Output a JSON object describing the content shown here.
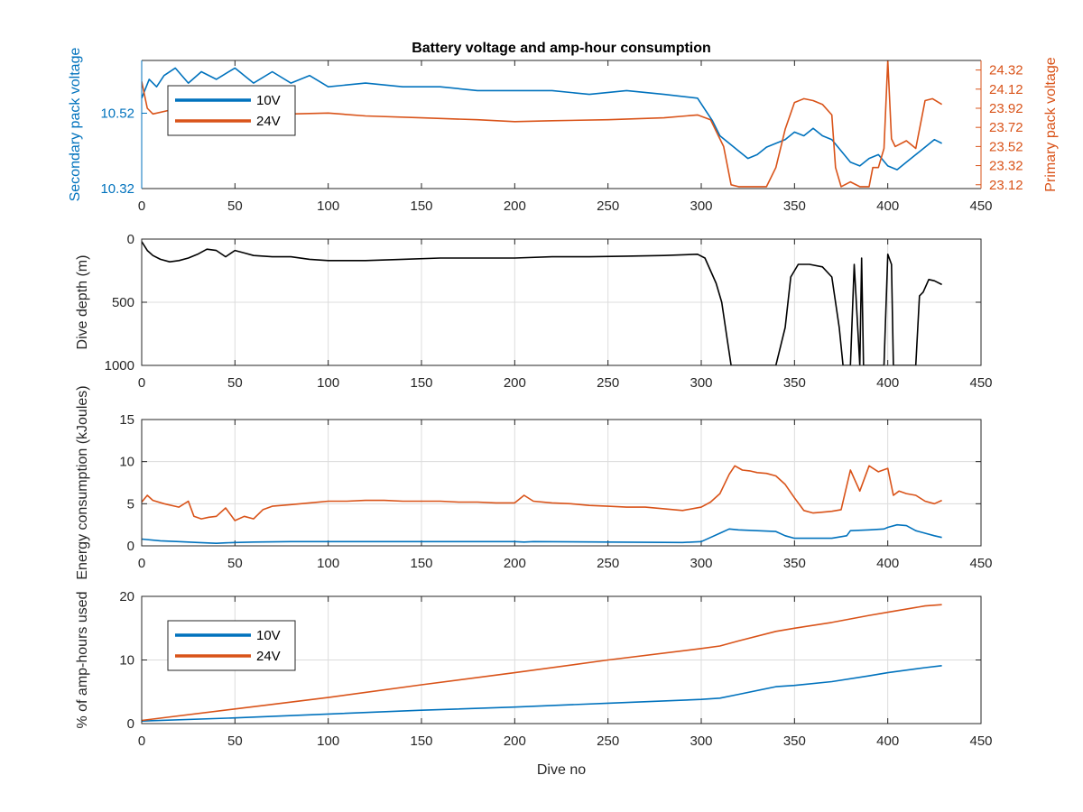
{
  "colors": {
    "blue": "#0072bd",
    "orange": "#d95319",
    "black": "#000000"
  },
  "chart_data": [
    {
      "type": "line",
      "title": "Battery voltage and amp-hour consumption",
      "xlim": [
        0,
        450
      ],
      "xticks": [
        0,
        50,
        100,
        150,
        200,
        250,
        300,
        350,
        400,
        450
      ],
      "ylabel": "Secondary pack voltage",
      "ylim": [
        10.32,
        10.66
      ],
      "yticks": [
        "10.32",
        "10.52"
      ],
      "ylabel_right": "Primary pack voltage",
      "ylim_right": [
        23.08,
        24.42
      ],
      "yticks_right": [
        "23.12",
        "23.32",
        "23.52",
        "23.72",
        "23.92",
        "24.12",
        "24.32"
      ],
      "grid": false,
      "legend": "top-left",
      "series": [
        {
          "name": "10V",
          "color": "#0072bd",
          "axis": "left",
          "x": [
            0,
            4,
            8,
            12,
            18,
            25,
            32,
            40,
            50,
            60,
            70,
            80,
            90,
            100,
            120,
            140,
            160,
            180,
            200,
            220,
            240,
            260,
            280,
            298,
            302,
            306,
            310,
            315,
            320,
            325,
            330,
            335,
            340,
            345,
            350,
            355,
            360,
            365,
            370,
            375,
            380,
            385,
            390,
            395,
            400,
            405,
            410,
            415,
            420,
            425,
            429
          ],
          "y": [
            10.56,
            10.61,
            10.59,
            10.62,
            10.64,
            10.6,
            10.63,
            10.61,
            10.64,
            10.6,
            10.63,
            10.6,
            10.62,
            10.59,
            10.6,
            10.59,
            10.59,
            10.58,
            10.58,
            10.58,
            10.57,
            10.58,
            10.57,
            10.56,
            10.53,
            10.5,
            10.46,
            10.44,
            10.42,
            10.4,
            10.41,
            10.43,
            10.44,
            10.45,
            10.47,
            10.46,
            10.48,
            10.46,
            10.45,
            10.42,
            10.39,
            10.38,
            10.4,
            10.41,
            10.38,
            10.37,
            10.39,
            10.41,
            10.43,
            10.45,
            10.44
          ]
        },
        {
          "name": "24V",
          "color": "#d95319",
          "axis": "right",
          "x": [
            0,
            3,
            6,
            15,
            30,
            40,
            60,
            80,
            100,
            120,
            150,
            180,
            200,
            220,
            250,
            280,
            298,
            305,
            312,
            316,
            320,
            335,
            340,
            345,
            350,
            355,
            360,
            365,
            370,
            372,
            375,
            380,
            385,
            390,
            392,
            395,
            398,
            400,
            402,
            404,
            410,
            415,
            418,
            420,
            424,
            429
          ],
          "y": [
            24.2,
            23.92,
            23.86,
            23.9,
            23.94,
            23.9,
            23.88,
            23.86,
            23.87,
            23.84,
            23.82,
            23.8,
            23.78,
            23.79,
            23.8,
            23.82,
            23.85,
            23.8,
            23.52,
            23.12,
            23.1,
            23.1,
            23.3,
            23.7,
            23.98,
            24.02,
            24.0,
            23.96,
            23.85,
            23.3,
            23.1,
            23.15,
            23.1,
            23.1,
            23.3,
            23.3,
            23.5,
            24.42,
            23.6,
            23.52,
            23.58,
            23.5,
            23.8,
            24.0,
            24.02,
            23.96
          ]
        }
      ]
    },
    {
      "type": "line",
      "xlim": [
        0,
        450
      ],
      "xticks": [
        0,
        50,
        100,
        150,
        200,
        250,
        300,
        350,
        400,
        450
      ],
      "ylabel": "Dive depth (m)",
      "ylim": [
        0,
        1000
      ],
      "y_reversed": true,
      "yticks": [
        "0",
        "500",
        "1000"
      ],
      "grid": true,
      "series": [
        {
          "color": "#000000",
          "x": [
            0,
            3,
            6,
            10,
            15,
            20,
            25,
            30,
            35,
            40,
            45,
            50,
            55,
            60,
            70,
            80,
            90,
            100,
            120,
            140,
            160,
            180,
            200,
            220,
            240,
            260,
            280,
            298,
            302,
            305,
            308,
            311,
            314,
            316,
            340,
            345,
            348,
            352,
            358,
            365,
            370,
            374,
            376,
            380,
            382,
            385,
            386,
            387,
            390,
            398,
            400,
            402,
            403,
            405,
            408,
            415,
            417,
            419,
            422,
            425,
            429
          ],
          "y": [
            20,
            90,
            130,
            160,
            180,
            170,
            150,
            120,
            80,
            90,
            140,
            90,
            110,
            130,
            140,
            140,
            160,
            170,
            170,
            160,
            150,
            150,
            150,
            140,
            140,
            135,
            130,
            120,
            150,
            250,
            350,
            500,
            800,
            1000,
            1000,
            700,
            300,
            200,
            200,
            220,
            300,
            700,
            1000,
            1000,
            200,
            1000,
            150,
            1000,
            1000,
            1000,
            120,
            200,
            1000,
            1000,
            1000,
            1000,
            450,
            420,
            320,
            330,
            360
          ]
        }
      ]
    },
    {
      "type": "line",
      "xlim": [
        0,
        450
      ],
      "xticks": [
        0,
        50,
        100,
        150,
        200,
        250,
        300,
        350,
        400,
        450
      ],
      "ylabel": "Energy consumption (kJoules)",
      "ylim": [
        0,
        15
      ],
      "yticks": [
        "0",
        "5",
        "10",
        "15"
      ],
      "grid": true,
      "series": [
        {
          "color": "#d95319",
          "x": [
            0,
            3,
            6,
            12,
            20,
            25,
            28,
            32,
            36,
            40,
            45,
            50,
            55,
            60,
            65,
            70,
            80,
            90,
            100,
            110,
            120,
            130,
            140,
            150,
            160,
            170,
            180,
            190,
            200,
            205,
            210,
            220,
            230,
            240,
            250,
            260,
            270,
            280,
            290,
            300,
            305,
            310,
            315,
            318,
            322,
            326,
            330,
            335,
            340,
            345,
            350,
            355,
            360,
            365,
            370,
            375,
            380,
            385,
            390,
            395,
            400,
            403,
            406,
            410,
            415,
            420,
            425,
            429
          ],
          "y": [
            5.2,
            6.0,
            5.4,
            5.0,
            4.6,
            5.3,
            3.5,
            3.2,
            3.4,
            3.5,
            4.5,
            3.0,
            3.5,
            3.2,
            4.3,
            4.7,
            4.9,
            5.1,
            5.3,
            5.3,
            5.4,
            5.4,
            5.3,
            5.3,
            5.3,
            5.2,
            5.2,
            5.1,
            5.1,
            6.0,
            5.3,
            5.1,
            5.0,
            4.8,
            4.7,
            4.6,
            4.6,
            4.4,
            4.2,
            4.6,
            5.2,
            6.2,
            8.5,
            9.5,
            9.0,
            8.9,
            8.7,
            8.6,
            8.3,
            7.3,
            5.7,
            4.2,
            3.9,
            4.0,
            4.1,
            4.3,
            9.0,
            6.5,
            9.5,
            8.8,
            9.2,
            6.0,
            6.5,
            6.2,
            6.0,
            5.3,
            5.0,
            5.4
          ]
        },
        {
          "color": "#0072bd",
          "x": [
            0,
            10,
            20,
            30,
            40,
            45,
            50,
            60,
            80,
            100,
            150,
            200,
            205,
            210,
            250,
            290,
            300,
            305,
            310,
            315,
            320,
            330,
            340,
            345,
            350,
            360,
            370,
            378,
            380,
            390,
            398,
            400,
            405,
            410,
            415,
            420,
            425,
            429
          ],
          "y": [
            0.8,
            0.6,
            0.5,
            0.4,
            0.3,
            0.35,
            0.4,
            0.45,
            0.5,
            0.5,
            0.5,
            0.5,
            0.45,
            0.5,
            0.45,
            0.4,
            0.5,
            1.0,
            1.5,
            2.0,
            1.9,
            1.8,
            1.7,
            1.2,
            0.9,
            0.9,
            0.9,
            1.2,
            1.8,
            1.9,
            2.0,
            2.2,
            2.5,
            2.4,
            1.8,
            1.5,
            1.2,
            1.0
          ]
        }
      ]
    },
    {
      "type": "line",
      "xlim": [
        0,
        450
      ],
      "xticks": [
        0,
        50,
        100,
        150,
        200,
        250,
        300,
        350,
        400,
        450
      ],
      "xlabel": "Dive no",
      "ylabel": "% of amp-hours used",
      "ylim": [
        0,
        20
      ],
      "yticks": [
        "0",
        "10",
        "20"
      ],
      "grid": true,
      "legend": "top-left",
      "series": [
        {
          "name": "10V",
          "color": "#0072bd",
          "x": [
            0,
            50,
            100,
            150,
            200,
            250,
            300,
            310,
            320,
            340,
            350,
            370,
            390,
            400,
            420,
            429
          ],
          "y": [
            0.4,
            0.9,
            1.5,
            2.1,
            2.6,
            3.2,
            3.8,
            4.0,
            4.6,
            5.8,
            6.0,
            6.6,
            7.5,
            8.0,
            8.8,
            9.1
          ]
        },
        {
          "name": "24V",
          "color": "#d95319",
          "x": [
            0,
            50,
            100,
            150,
            200,
            250,
            300,
            310,
            320,
            340,
            350,
            370,
            390,
            400,
            420,
            429
          ],
          "y": [
            0.5,
            2.3,
            4.1,
            6.1,
            8.0,
            10.0,
            11.8,
            12.2,
            13.0,
            14.5,
            15.0,
            15.9,
            17.0,
            17.5,
            18.5,
            18.7
          ]
        }
      ]
    }
  ]
}
